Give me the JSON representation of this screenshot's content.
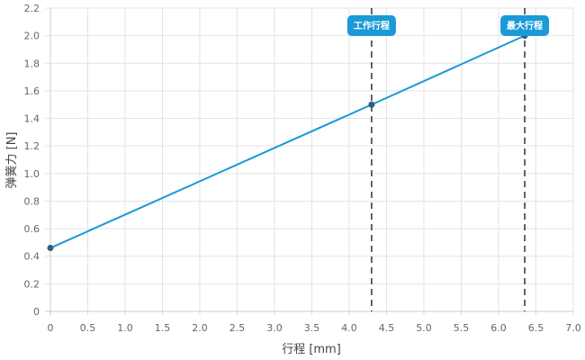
{
  "chart_data": {
    "type": "line",
    "xlabel": "行程 [mm]",
    "ylabel": "弹簧力 [N]",
    "xlim": [
      0,
      7.0
    ],
    "ylim": [
      0,
      2.2
    ],
    "xticks": [
      "0",
      "0.5",
      "1.0",
      "1.5",
      "2.0",
      "2.5",
      "3.0",
      "3.5",
      "4.0",
      "4.5",
      "5.0",
      "5.5",
      "6.0",
      "6.5",
      "7.0"
    ],
    "yticks": [
      "0",
      "0.2",
      "0.4",
      "0.6",
      "0.8",
      "1.0",
      "1.2",
      "1.4",
      "1.6",
      "1.8",
      "2.0",
      "2.2"
    ],
    "grid": true,
    "series": [
      {
        "x": [
          0,
          4.3,
          6.35
        ],
        "y": [
          0.46,
          1.5,
          2.0
        ],
        "color": "#1a9ad6"
      }
    ],
    "vlines": [
      {
        "x": 4.3,
        "label": "工作行程"
      },
      {
        "x": 6.35,
        "label": "最大行程"
      }
    ],
    "marker_color": "#1a9ad6",
    "point_color": "#2d5f86"
  }
}
